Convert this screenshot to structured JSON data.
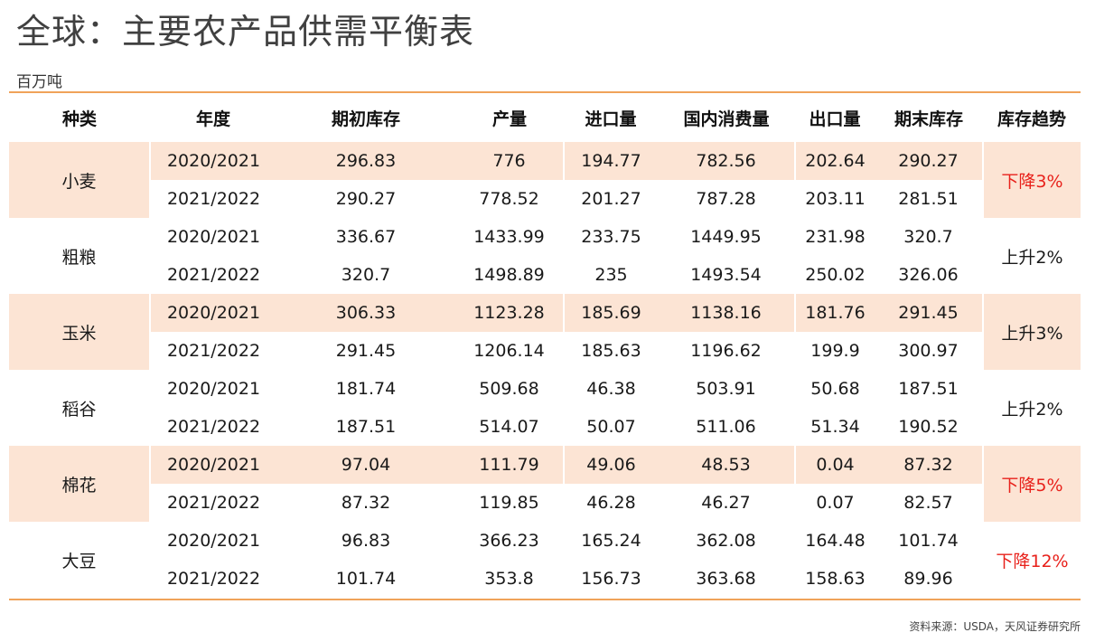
{
  "title": "全球：主要农产品供需平衡表",
  "unit": "百万吨",
  "columns": [
    "种类",
    "年度",
    "期初库存",
    "产量",
    "进口量",
    "国内消费量",
    "出口量",
    "期末库存",
    "库存趋势"
  ],
  "crops": [
    {
      "name": "小麦",
      "trend": "下降3%",
      "trend_color": "#e8211b",
      "shaded": true,
      "rows": [
        {
          "year": "2020/2021",
          "opening": "296.83",
          "production": "776",
          "imports": "194.77",
          "consumption": "782.56",
          "exports": "202.64",
          "ending": "290.27"
        },
        {
          "year": "2021/2022",
          "opening": "290.27",
          "production": "778.52",
          "imports": "201.27",
          "consumption": "787.28",
          "exports": "203.11",
          "ending": "281.51"
        }
      ]
    },
    {
      "name": "粗粮",
      "trend": "上升2%",
      "trend_color": "#1a1a1a",
      "shaded": false,
      "rows": [
        {
          "year": "2020/2021",
          "opening": "336.67",
          "production": "1433.99",
          "imports": "233.75",
          "consumption": "1449.95",
          "exports": "231.98",
          "ending": "320.7"
        },
        {
          "year": "2021/2022",
          "opening": "320.7",
          "production": "1498.89",
          "imports": "235",
          "consumption": "1493.54",
          "exports": "250.02",
          "ending": "326.06"
        }
      ]
    },
    {
      "name": "玉米",
      "trend": "上升3%",
      "trend_color": "#1a1a1a",
      "shaded": true,
      "rows": [
        {
          "year": "2020/2021",
          "opening": "306.33",
          "production": "1123.28",
          "imports": "185.69",
          "consumption": "1138.16",
          "exports": "181.76",
          "ending": "291.45"
        },
        {
          "year": "2021/2022",
          "opening": "291.45",
          "production": "1206.14",
          "imports": "185.63",
          "consumption": "1196.62",
          "exports": "199.9",
          "ending": "300.97"
        }
      ]
    },
    {
      "name": "稻谷",
      "trend": "上升2%",
      "trend_color": "#1a1a1a",
      "shaded": false,
      "rows": [
        {
          "year": "2020/2021",
          "opening": "181.74",
          "production": "509.68",
          "imports": "46.38",
          "consumption": "503.91",
          "exports": "50.68",
          "ending": "187.51"
        },
        {
          "year": "2021/2022",
          "opening": "187.51",
          "production": "514.07",
          "imports": "50.07",
          "consumption": "511.06",
          "exports": "51.34",
          "ending": "190.52"
        }
      ]
    },
    {
      "name": "棉花",
      "trend": "下降5%",
      "trend_color": "#e8211b",
      "shaded": true,
      "rows": [
        {
          "year": "2020/2021",
          "opening": "97.04",
          "production": "111.79",
          "imports": "49.06",
          "consumption": "48.53",
          "exports": "0.04",
          "ending": "87.32"
        },
        {
          "year": "2021/2022",
          "opening": "87.32",
          "production": "119.85",
          "imports": "46.28",
          "consumption": "46.27",
          "exports": "0.07",
          "ending": "82.57"
        }
      ]
    },
    {
      "name": "大豆",
      "trend": "下降12%",
      "trend_color": "#e8211b",
      "shaded": false,
      "rows": [
        {
          "year": "2020/2021",
          "opening": "96.83",
          "production": "366.23",
          "imports": "165.24",
          "consumption": "362.08",
          "exports": "164.48",
          "ending": "101.74"
        },
        {
          "year": "2021/2022",
          "opening": "101.74",
          "production": "353.8",
          "imports": "156.73",
          "consumption": "363.68",
          "exports": "158.63",
          "ending": "89.96"
        }
      ]
    }
  ],
  "colors": {
    "accent_line": "#f0a35a",
    "row_shade": "#fce4d4",
    "down": "#e8211b"
  },
  "source": "资料来源：USDA，天风证券研究所"
}
